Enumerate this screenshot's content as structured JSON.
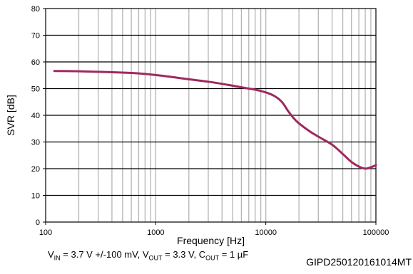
{
  "chart_data": {
    "type": "line",
    "xlabel": "Frequency [Hz]",
    "ylabel": "SVR [dB]",
    "xscale": "log",
    "xlim": [
      100,
      100000
    ],
    "ylim": [
      0,
      80
    ],
    "grid": true,
    "color": "#A0285F",
    "x_ticks": [
      {
        "value": 100,
        "label": "100"
      },
      {
        "value": 1000,
        "label": "1000"
      },
      {
        "value": 10000,
        "label": "10000"
      },
      {
        "value": 100000,
        "label": "100000"
      }
    ],
    "y_ticks": [
      {
        "value": 0,
        "label": "0"
      },
      {
        "value": 10,
        "label": "10"
      },
      {
        "value": 20,
        "label": "20"
      },
      {
        "value": 30,
        "label": "30"
      },
      {
        "value": 40,
        "label": "40"
      },
      {
        "value": 50,
        "label": "50"
      },
      {
        "value": 60,
        "label": "60"
      },
      {
        "value": 70,
        "label": "70"
      },
      {
        "value": 80,
        "label": "80"
      }
    ],
    "series": [
      {
        "x": [
          120,
          200,
          300,
          500,
          700,
          1000,
          1500,
          2000,
          3000,
          4000,
          5000,
          6000,
          7000,
          8000,
          10000,
          12000,
          14000,
          16000,
          18000,
          20000,
          25000,
          30000,
          40000,
          50000,
          60000,
          70000,
          80000,
          90000,
          100000
        ],
        "values": [
          56.6,
          56.5,
          56.3,
          56.0,
          55.7,
          55.1,
          54.2,
          53.5,
          52.6,
          51.8,
          51.1,
          50.5,
          50.0,
          49.6,
          48.6,
          47.2,
          45.0,
          41.5,
          38.8,
          37.0,
          34.0,
          32.0,
          29.0,
          25.5,
          22.5,
          20.8,
          20.0,
          20.5,
          21.3
        ]
      }
    ]
  },
  "conditions": {
    "vin_label": "V",
    "vin_sub": "IN",
    "vin_value": " = 3.7 V +/-100 mV, ",
    "vout_label": "V",
    "vout_sub": "OUT",
    "vout_value": " = 3.3 V, ",
    "cout_label": "C",
    "cout_sub": "OUT",
    "cout_value": " = 1 µF"
  },
  "figure_id": "GIPD250120161014MT"
}
